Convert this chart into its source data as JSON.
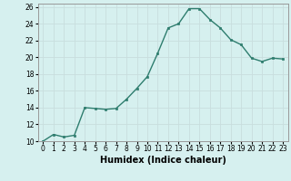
{
  "x": [
    0,
    1,
    2,
    3,
    4,
    5,
    6,
    7,
    8,
    9,
    10,
    11,
    12,
    13,
    14,
    15,
    16,
    17,
    18,
    19,
    20,
    21,
    22,
    23
  ],
  "y": [
    10,
    10.8,
    10.5,
    10.7,
    14,
    13.9,
    13.8,
    13.9,
    15.0,
    16.3,
    17.7,
    20.5,
    23.5,
    24.0,
    25.8,
    25.8,
    24.5,
    23.5,
    22.1,
    21.5,
    19.9,
    19.5,
    19.9,
    19.8
  ],
  "xlabel": "Humidex (Indice chaleur)",
  "xlim": [
    -0.5,
    23.5
  ],
  "ylim": [
    10,
    26.4
  ],
  "yticks": [
    10,
    12,
    14,
    16,
    18,
    20,
    22,
    24,
    26
  ],
  "xticks": [
    0,
    1,
    2,
    3,
    4,
    5,
    6,
    7,
    8,
    9,
    10,
    11,
    12,
    13,
    14,
    15,
    16,
    17,
    18,
    19,
    20,
    21,
    22,
    23
  ],
  "line_color": "#2e7d6e",
  "marker_color": "#2e7d6e",
  "bg_color": "#d6f0ef",
  "grid_color": "#c8dede",
  "axis_color": "#999999",
  "tick_label_fontsize": 5.5,
  "xlabel_fontsize": 7
}
